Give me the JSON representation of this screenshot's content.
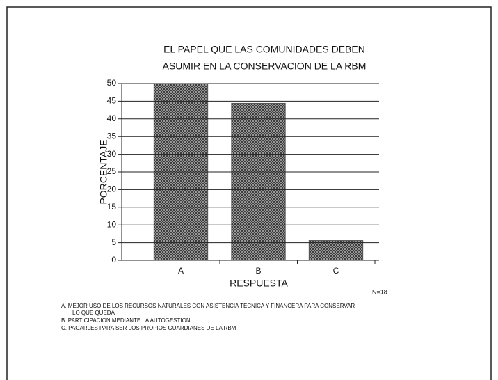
{
  "chart_data": {
    "type": "bar",
    "title": [
      "EL PAPEL QUE LAS COMUNIDADES DEBEN",
      "ASUMIR EN LA CONSERVACION DE LA RBM"
    ],
    "x_label": "RESPUESTA",
    "y_label": "PORCENTAJE",
    "annotation": "N=18",
    "categories": [
      "A",
      "B",
      "C"
    ],
    "values": [
      50,
      44.4,
      5.6
    ],
    "color": "#555555",
    "ylim": [
      0,
      50
    ],
    "yticks": [
      0,
      5,
      10,
      15,
      20,
      25,
      30,
      35,
      40,
      45,
      50
    ],
    "grid": true,
    "notes": [
      "A.  MEJOR USO DE LOS RECURSOS NATURALES CON ASISTENCIA TECNICA Y FINANCERA PARA CONSERVAR",
      "LO QUE QUEDA",
      "B.  PARTICIPACION MEDIANTE LA AUTOGESTION",
      "C.  PAGARLES PARA SER LOS PROPIOS GUARDIANES DE LA RBM"
    ]
  }
}
